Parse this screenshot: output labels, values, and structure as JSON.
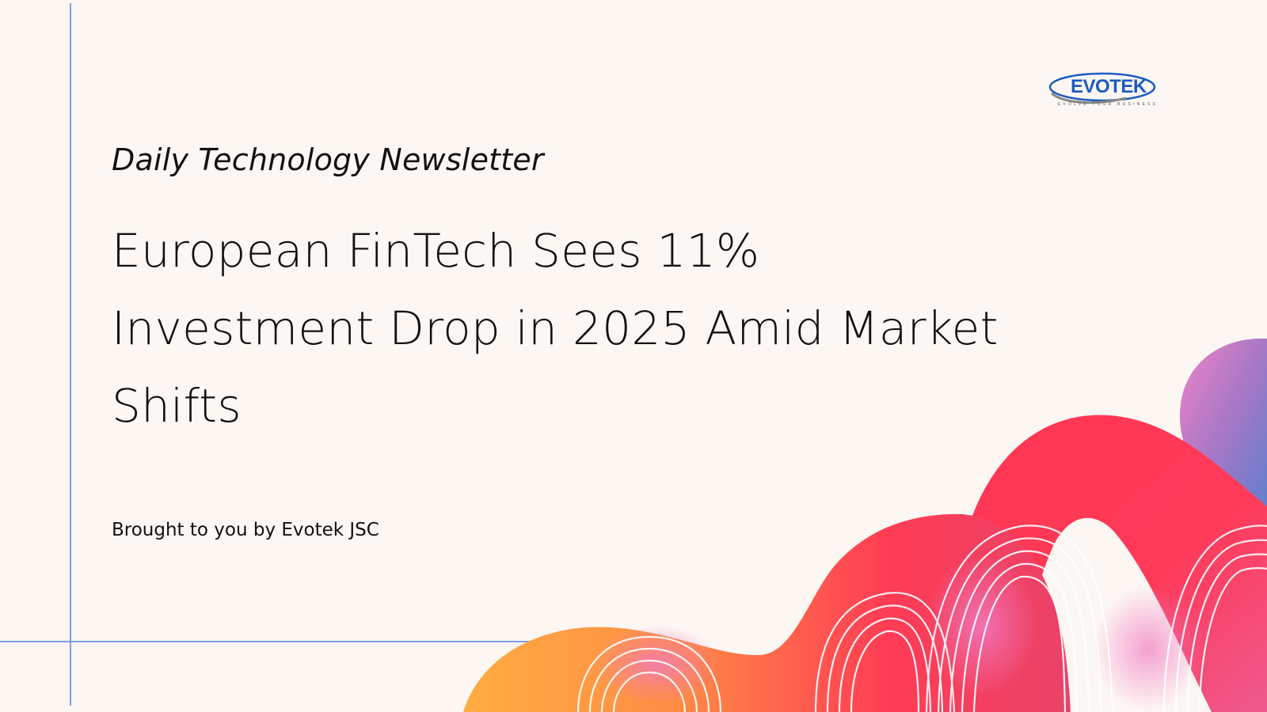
{
  "newsletter": {
    "kicker": "Daily Technology Newsletter",
    "headline_lines": [
      "European FinTech Sees 11%",
      "Investment Drop in 2025 Amid Market",
      "Shifts"
    ],
    "byline": "Brought to you by Evotek JSC"
  },
  "logo": {
    "wordmark": "EVOTEK",
    "tagline": "EVOLVE YOUR BUSINESS"
  },
  "colors": {
    "background": "#fdf7f3",
    "rule": "#7b9ee8",
    "brand": "#1c5bbf",
    "art_orange": "#ff9a3c",
    "art_red": "#ff3552",
    "art_pink": "#e97fc2",
    "art_blue": "#6f86c9"
  }
}
